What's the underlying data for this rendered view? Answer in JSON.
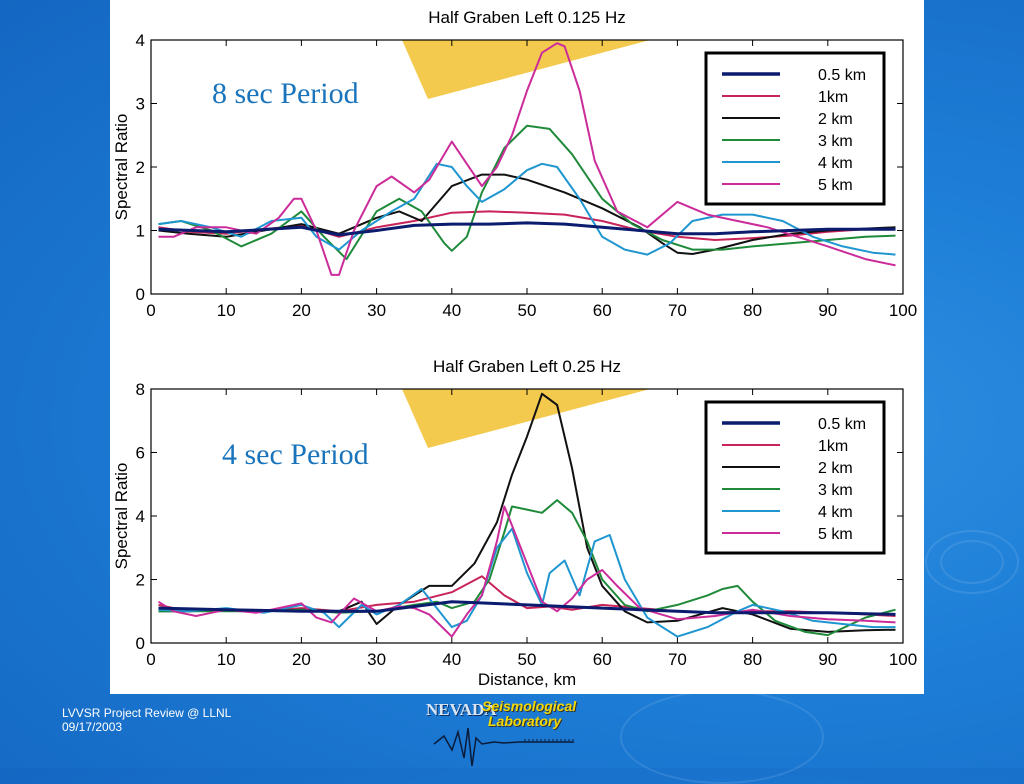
{
  "footer": {
    "line1": "LVVSR Project Review @ LLNL",
    "line2": "09/17/2003"
  },
  "logo": {
    "nevada": "NEVADA",
    "line1": "Seismological",
    "line2": "Laboratory"
  },
  "legend_entries": [
    "0.5 km",
    "1km",
    "2 km",
    "3 km",
    "4 km",
    "5 km"
  ],
  "series_colors": [
    "#0b1b6e",
    "#c8245a",
    "#111111",
    "#1f8a3a",
    "#1f96d0",
    "#cc2b9a"
  ],
  "chart_data": [
    {
      "type": "line",
      "title": "Half Graben Left 0.125 Hz",
      "annotation": "8 sec Period",
      "xlabel": "",
      "ylabel": "Spectral Ratio",
      "xlim": [
        0,
        100
      ],
      "ylim": [
        0,
        4
      ],
      "xticks": [
        0,
        10,
        20,
        30,
        40,
        50,
        60,
        70,
        80,
        90,
        100
      ],
      "yticks": [
        0,
        1,
        2,
        3,
        4
      ],
      "legend_position": "top-right",
      "series": [
        {
          "name": "0.5 km",
          "x": [
            1,
            10,
            20,
            25,
            30,
            35,
            40,
            45,
            50,
            55,
            60,
            65,
            70,
            75,
            80,
            85,
            90,
            95,
            99
          ],
          "y": [
            1.02,
            0.98,
            1.05,
            0.93,
            1.0,
            1.08,
            1.1,
            1.1,
            1.12,
            1.1,
            1.05,
            1.0,
            0.95,
            0.95,
            0.98,
            1.0,
            1.02,
            1.02,
            1.02
          ]
        },
        {
          "name": "1km",
          "x": [
            1,
            5,
            10,
            15,
            20,
            25,
            30,
            35,
            40,
            45,
            50,
            55,
            60,
            65,
            70,
            75,
            80,
            85,
            90,
            95,
            99
          ],
          "y": [
            1.05,
            0.98,
            0.95,
            1.02,
            1.08,
            0.9,
            1.05,
            1.15,
            1.28,
            1.3,
            1.28,
            1.25,
            1.15,
            1.0,
            0.9,
            0.85,
            0.88,
            0.92,
            0.98,
            1.02,
            1.03
          ]
        },
        {
          "name": "2 km",
          "x": [
            1,
            5,
            10,
            15,
            20,
            25,
            30,
            33,
            36,
            40,
            44,
            47,
            50,
            55,
            60,
            65,
            68,
            70,
            72,
            75,
            80,
            85,
            90,
            95,
            99
          ],
          "y": [
            1.0,
            0.95,
            0.9,
            1.0,
            1.1,
            0.95,
            1.2,
            1.3,
            1.15,
            1.7,
            1.88,
            1.88,
            1.8,
            1.6,
            1.35,
            1.05,
            0.8,
            0.65,
            0.63,
            0.7,
            0.85,
            0.95,
            1.0,
            1.03,
            1.05
          ]
        },
        {
          "name": "3 km",
          "x": [
            1,
            4,
            8,
            12,
            16,
            20,
            23,
            26,
            30,
            33,
            36,
            39,
            40,
            42,
            44,
            47,
            50,
            53,
            56,
            60,
            64,
            68,
            72,
            76,
            80,
            85,
            90,
            95,
            99
          ],
          "y": [
            1.1,
            1.15,
            1.0,
            0.75,
            0.95,
            1.3,
            0.9,
            0.55,
            1.3,
            1.5,
            1.3,
            0.8,
            0.68,
            0.9,
            1.6,
            2.3,
            2.65,
            2.6,
            2.2,
            1.5,
            1.1,
            0.85,
            0.7,
            0.7,
            0.75,
            0.8,
            0.85,
            0.9,
            0.92
          ]
        },
        {
          "name": "4 km",
          "x": [
            1,
            4,
            8,
            12,
            16,
            20,
            22,
            25,
            28,
            32,
            35,
            38,
            40,
            42,
            44,
            47,
            50,
            52,
            54,
            57,
            60,
            63,
            66,
            69,
            72,
            76,
            80,
            84,
            88,
            92,
            96,
            99
          ],
          "y": [
            1.1,
            1.15,
            1.05,
            0.9,
            1.15,
            1.2,
            0.9,
            0.7,
            1.0,
            1.3,
            1.5,
            2.05,
            2.0,
            1.7,
            1.45,
            1.65,
            1.95,
            2.05,
            2.0,
            1.5,
            0.9,
            0.7,
            0.62,
            0.8,
            1.15,
            1.25,
            1.25,
            1.15,
            0.9,
            0.75,
            0.65,
            0.62
          ]
        },
        {
          "name": "5 km",
          "x": [
            1,
            3,
            6,
            10,
            14,
            17,
            19,
            20,
            22,
            24,
            25,
            27,
            30,
            32,
            35,
            37,
            39,
            40,
            42,
            44,
            46,
            48,
            50,
            52,
            54,
            55,
            57,
            59,
            62,
            66,
            70,
            74,
            78,
            82,
            86,
            90,
            95,
            99
          ],
          "y": [
            0.9,
            0.9,
            1.05,
            1.05,
            0.95,
            1.2,
            1.5,
            1.5,
            1.0,
            0.3,
            0.3,
            1.0,
            1.7,
            1.85,
            1.6,
            1.8,
            2.2,
            2.4,
            2.05,
            1.7,
            2.0,
            2.5,
            3.2,
            3.8,
            3.95,
            3.9,
            3.2,
            2.1,
            1.3,
            1.05,
            1.45,
            1.25,
            1.15,
            1.05,
            0.9,
            0.75,
            0.55,
            0.45
          ]
        }
      ]
    },
    {
      "type": "line",
      "title": "Half Graben Left 0.25 Hz",
      "annotation": "4 sec Period",
      "xlabel": "Distance, km",
      "ylabel": "Spectral Ratio",
      "xlim": [
        0,
        100
      ],
      "ylim": [
        0,
        8
      ],
      "xticks": [
        0,
        10,
        20,
        30,
        40,
        50,
        60,
        70,
        80,
        90,
        100
      ],
      "yticks": [
        0,
        2,
        4,
        6,
        8
      ],
      "legend_position": "top-right",
      "series": [
        {
          "name": "0.5 km",
          "x": [
            1,
            10,
            20,
            30,
            35,
            40,
            45,
            50,
            55,
            60,
            65,
            70,
            75,
            80,
            85,
            90,
            95,
            99
          ],
          "y": [
            1.1,
            1.05,
            1.0,
            1.0,
            1.15,
            1.3,
            1.25,
            1.2,
            1.15,
            1.1,
            1.05,
            1.0,
            0.95,
            0.95,
            0.95,
            0.95,
            0.92,
            0.9
          ]
        },
        {
          "name": "1km",
          "x": [
            1,
            5,
            10,
            15,
            20,
            25,
            30,
            35,
            40,
            44,
            47,
            50,
            53,
            56,
            60,
            65,
            70,
            75,
            80,
            85,
            90,
            95,
            99
          ],
          "y": [
            1.2,
            1.0,
            1.05,
            1.0,
            1.1,
            1.0,
            1.2,
            1.3,
            1.6,
            2.1,
            1.5,
            1.1,
            1.15,
            1.05,
            1.2,
            1.1,
            1.0,
            0.95,
            1.0,
            1.0,
            0.95,
            0.9,
            0.85
          ]
        },
        {
          "name": "2 km",
          "x": [
            1,
            5,
            10,
            15,
            20,
            25,
            28,
            30,
            33,
            35,
            37,
            40,
            43,
            46,
            48,
            50,
            52,
            54,
            56,
            58,
            60,
            63,
            66,
            70,
            73,
            76,
            80,
            85,
            90,
            95,
            99
          ],
          "y": [
            1.0,
            1.0,
            1.05,
            1.0,
            1.05,
            1.0,
            1.3,
            0.6,
            1.2,
            1.5,
            1.8,
            1.8,
            2.5,
            3.8,
            5.3,
            6.5,
            7.85,
            7.5,
            5.5,
            3.0,
            1.8,
            1.0,
            0.65,
            0.7,
            0.9,
            1.1,
            0.9,
            0.45,
            0.35,
            0.4,
            0.42
          ]
        },
        {
          "name": "3 km",
          "x": [
            1,
            5,
            10,
            15,
            20,
            25,
            30,
            35,
            38,
            40,
            43,
            45,
            47,
            48,
            50,
            52,
            54,
            56,
            58,
            60,
            63,
            66,
            70,
            74,
            76,
            78,
            80,
            83,
            87,
            90,
            95,
            99
          ],
          "y": [
            1.0,
            1.0,
            1.0,
            1.0,
            1.05,
            0.95,
            1.0,
            1.2,
            1.3,
            1.1,
            1.3,
            2.0,
            3.5,
            4.3,
            4.2,
            4.1,
            4.5,
            4.1,
            3.2,
            2.0,
            1.2,
            1.0,
            1.2,
            1.5,
            1.7,
            1.8,
            1.3,
            0.7,
            0.35,
            0.25,
            0.8,
            1.05
          ]
        },
        {
          "name": "4 km",
          "x": [
            1,
            5,
            10,
            15,
            20,
            23,
            25,
            28,
            30,
            33,
            36,
            38,
            40,
            42,
            44,
            46,
            48,
            50,
            52,
            53,
            55,
            57,
            59,
            61,
            63,
            66,
            70,
            74,
            78,
            80,
            84,
            88,
            92,
            96,
            99
          ],
          "y": [
            1.05,
            1.0,
            1.1,
            0.95,
            1.2,
            0.95,
            0.5,
            1.2,
            0.9,
            1.2,
            1.7,
            1.1,
            0.5,
            0.7,
            1.5,
            3.0,
            3.6,
            2.2,
            1.2,
            2.2,
            2.6,
            1.5,
            3.2,
            3.4,
            2.0,
            0.8,
            0.2,
            0.5,
            1.0,
            1.2,
            1.0,
            0.7,
            0.6,
            0.5,
            0.5
          ]
        },
        {
          "name": "5 km",
          "x": [
            1,
            3,
            6,
            10,
            14,
            17,
            20,
            22,
            24,
            27,
            30,
            33,
            35,
            37,
            40,
            42,
            44,
            46,
            47,
            48,
            50,
            52,
            54,
            56,
            58,
            60,
            62,
            65,
            70,
            75,
            80,
            85,
            90,
            95,
            99
          ],
          "y": [
            1.3,
            1.0,
            0.85,
            1.05,
            0.95,
            1.1,
            1.25,
            0.8,
            0.65,
            1.4,
            1.0,
            1.15,
            1.1,
            0.9,
            0.2,
            0.9,
            1.5,
            3.2,
            4.3,
            3.7,
            2.5,
            1.3,
            1.0,
            1.4,
            2.0,
            2.3,
            1.8,
            1.1,
            0.75,
            0.85,
            1.05,
            0.85,
            0.75,
            0.7,
            0.65
          ]
        }
      ]
    }
  ]
}
